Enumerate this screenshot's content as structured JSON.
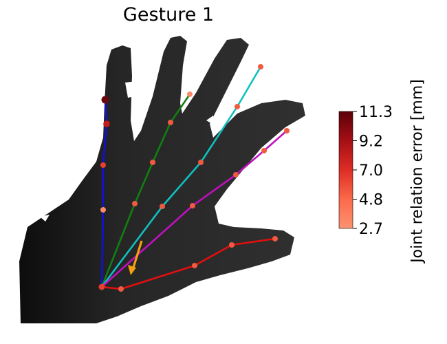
{
  "title": "Gesture 1",
  "colorbar": {
    "label": "Joint relation error [mm]",
    "ticks": [
      "11.3",
      "9.2",
      "7.0",
      "4.8",
      "2.7"
    ],
    "min": 2.7,
    "max": 11.3,
    "colors": [
      "#5c0008",
      "#a50f15",
      "#de2d26",
      "#fb6a4a",
      "#fc9272"
    ]
  },
  "hand": {
    "fill": "#2e2e2e",
    "shadow": "#141414"
  },
  "chains": [
    {
      "name": "thumb",
      "color": "#1010e0"
    },
    {
      "name": "index",
      "color": "#108010"
    },
    {
      "name": "middle",
      "color": "#10c0c0"
    },
    {
      "name": "ring",
      "color": "#c010c0"
    },
    {
      "name": "pinky",
      "color": "#e01010"
    }
  ],
  "arrow_color": "#f5a010"
}
